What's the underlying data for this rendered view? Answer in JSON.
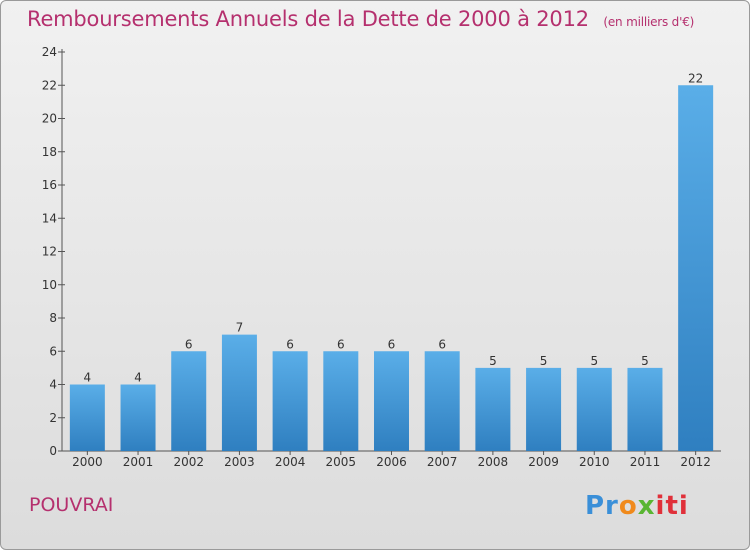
{
  "header": {
    "title": "Remboursements Annuels de la Dette de 2000 à 2012",
    "unit": "(en milliers d'€)"
  },
  "footer": {
    "commune": "POUVRAI",
    "logo_text": "Proxiti",
    "logo_letters": [
      "Pr",
      "o",
      "x",
      "iti"
    ]
  },
  "colors": {
    "bar_top": "#5aaee8",
    "bar_bottom": "#2f7fc0",
    "title": "#b5306e"
  },
  "chart_data": {
    "type": "bar",
    "title": "Remboursements Annuels de la Dette de 2000 à 2012",
    "xlabel": "",
    "ylabel": "",
    "categories": [
      "2000",
      "2001",
      "2002",
      "2003",
      "2004",
      "2005",
      "2006",
      "2007",
      "2008",
      "2009",
      "2010",
      "2011",
      "2012"
    ],
    "values": [
      4,
      4,
      6,
      7,
      6,
      6,
      6,
      6,
      5,
      5,
      5,
      5,
      22
    ],
    "ylim": [
      0,
      24
    ],
    "yticks": [
      0,
      2,
      4,
      6,
      8,
      10,
      12,
      14,
      16,
      18,
      20,
      22,
      24
    ],
    "grid": false,
    "legend": "none"
  }
}
